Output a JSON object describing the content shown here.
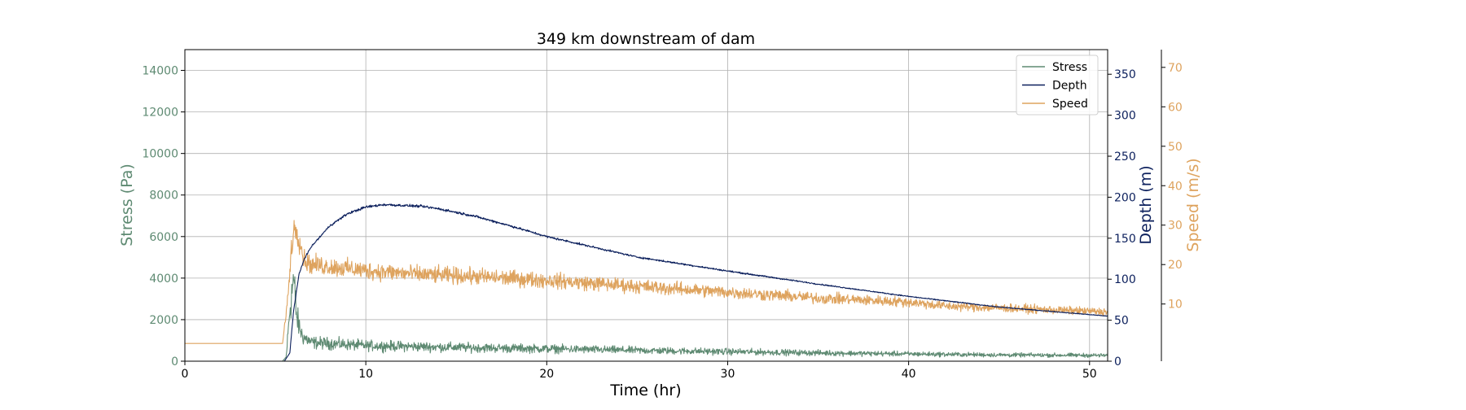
{
  "chart_data": {
    "type": "line",
    "title": "349 km downstream of dam",
    "xlabel": "Time (hr)",
    "xlim": [
      0,
      51
    ],
    "xticks": [
      0,
      10,
      20,
      30,
      40,
      50
    ],
    "grid": true,
    "legend": {
      "placement": "top-right",
      "entries": [
        "Stress",
        "Depth",
        "Speed"
      ]
    },
    "axes": {
      "stress": {
        "label": "Stress (Pa)",
        "side": "left",
        "lim": [
          0,
          15000
        ],
        "ticks": [
          0,
          2000,
          4000,
          6000,
          8000,
          10000,
          12000,
          14000
        ],
        "color": "#5e8a72"
      },
      "depth": {
        "label": "Depth (m)",
        "side": "right",
        "lim": [
          0,
          380
        ],
        "ticks": [
          0,
          50,
          100,
          150,
          200,
          250,
          300,
          350
        ],
        "color": "#0b1f5c"
      },
      "speed": {
        "label": "Speed (m/s)",
        "side": "right-outer",
        "lim": [
          -4.5,
          74.5
        ],
        "ticks": [
          10,
          20,
          30,
          40,
          50,
          60,
          70
        ],
        "color": "#dea35e"
      }
    },
    "series": [
      {
        "name": "Stress",
        "axis": "stress",
        "color": "#5e8a72",
        "noise": 0.5,
        "x": [
          0,
          5.4,
          5.6,
          5.8,
          6.0,
          6.2,
          6.5,
          7,
          8,
          10,
          13,
          16,
          20,
          25,
          30,
          35,
          40,
          45,
          51
        ],
        "y": [
          0,
          0,
          200,
          2500,
          4000,
          2000,
          1200,
          900,
          850,
          750,
          700,
          650,
          600,
          520,
          460,
          400,
          350,
          300,
          280
        ]
      },
      {
        "name": "Depth",
        "axis": "depth",
        "color": "#0b1f5c",
        "noise": 0.012,
        "x": [
          0,
          5.5,
          5.8,
          6.0,
          6.3,
          6.6,
          7,
          8,
          9,
          10,
          11,
          12,
          13,
          14,
          16,
          18,
          20,
          25,
          30,
          35,
          40,
          45,
          51
        ],
        "y": [
          0,
          0,
          10,
          60,
          105,
          125,
          140,
          165,
          180,
          188,
          191,
          190,
          189,
          186,
          177,
          165,
          152,
          127,
          110,
          94,
          79,
          66,
          55
        ]
      },
      {
        "name": "Speed",
        "axis": "speed",
        "color": "#dea35e",
        "noise": 0.18,
        "x": [
          0,
          5.4,
          5.7,
          5.9,
          6.1,
          6.3,
          6.6,
          7,
          8,
          10,
          13,
          16,
          20,
          25,
          30,
          35,
          40,
          42,
          45,
          51
        ],
        "y": [
          0,
          0,
          12,
          25,
          30,
          27,
          21,
          20,
          19.5,
          18.5,
          17.5,
          17,
          16,
          14.5,
          13,
          11.5,
          10.5,
          9.5,
          9,
          8
        ]
      }
    ]
  }
}
